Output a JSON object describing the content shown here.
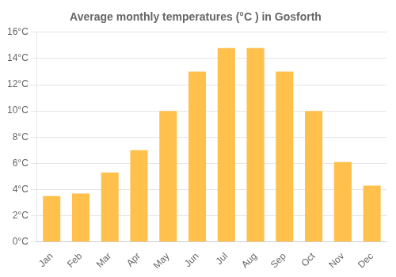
{
  "chart_data": {
    "type": "bar",
    "title": "Average monthly temperatures (°C ) in Gosforth",
    "categories": [
      "Jan",
      "Feb",
      "Mar",
      "Apr",
      "May",
      "Jun",
      "Jul",
      "Aug",
      "Sep",
      "Oct",
      "Nov",
      "Dec"
    ],
    "values": [
      3.5,
      3.7,
      5.3,
      7.0,
      10.0,
      13.0,
      14.8,
      14.8,
      13.0,
      10.0,
      6.1,
      4.3
    ],
    "color": "#FFC04C",
    "ylim": [
      0,
      16
    ],
    "yticks": [
      {
        "value": 0,
        "label": "0°C"
      },
      {
        "value": 2,
        "label": "2°C"
      },
      {
        "value": 4,
        "label": "4°C"
      },
      {
        "value": 6,
        "label": "6°C"
      },
      {
        "value": 8,
        "label": "8°C"
      },
      {
        "value": 10,
        "label": "10°C"
      },
      {
        "value": 12,
        "label": "12°C"
      },
      {
        "value": 14,
        "label": "14°C"
      },
      {
        "value": 16,
        "label": "16°C"
      }
    ],
    "grid": true
  }
}
